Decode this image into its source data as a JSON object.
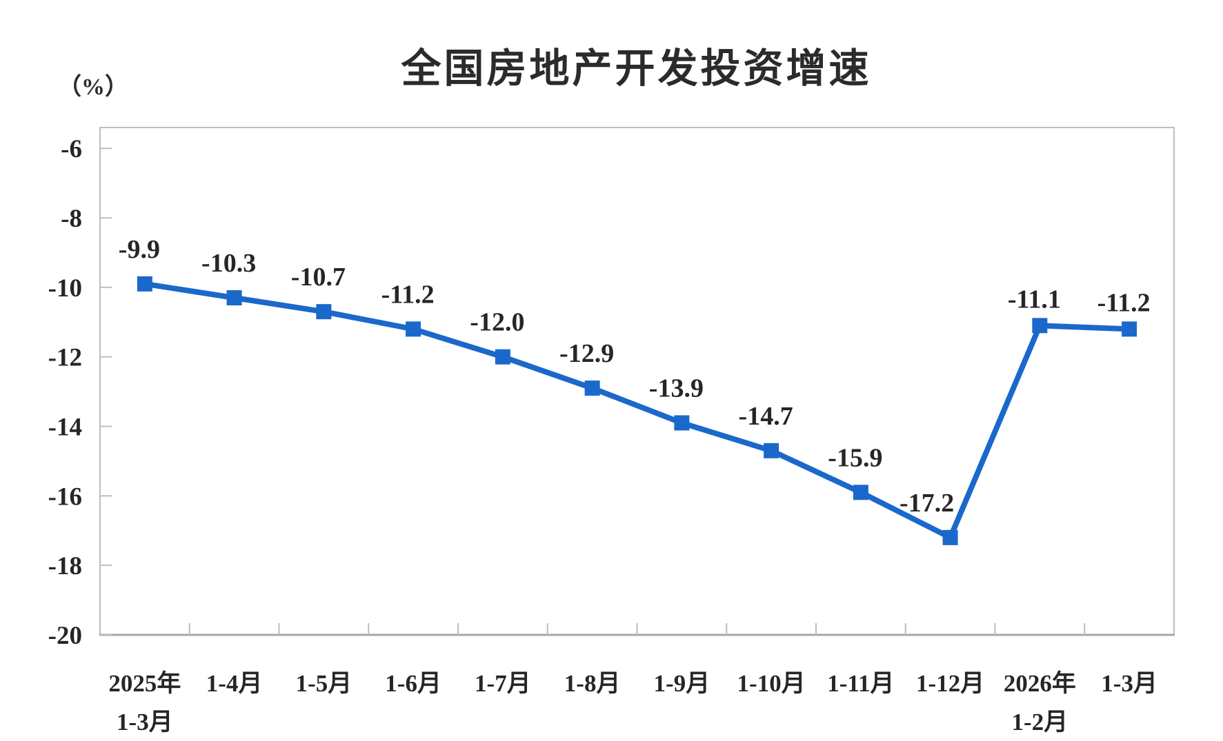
{
  "page": {
    "background_color": "#ffffff"
  },
  "chart_data": {
    "type": "line",
    "title": "全国房地产开发投资增速",
    "unit_label": "（%）",
    "series_name": "全国房地产开发投资增速",
    "categories": [
      "2025年\n1-3月",
      "1-4月",
      "1-5月",
      "1-6月",
      "1-7月",
      "1-8月",
      "1-9月",
      "1-10月",
      "1-11月",
      "1-12月",
      "2026年\n1-2月",
      "1-3月"
    ],
    "values": [
      -9.9,
      -10.3,
      -10.7,
      -11.2,
      -12.0,
      -12.9,
      -13.9,
      -14.7,
      -15.9,
      -17.2,
      -11.1,
      -11.2
    ],
    "data_labels": [
      "-9.9",
      "-10.3",
      "-10.7",
      "-11.2",
      "-12.0",
      "-12.9",
      "-13.9",
      "-14.7",
      "-15.9",
      "-17.2",
      "-11.1",
      "-11.2"
    ],
    "y_tick_values": [
      -6,
      -8,
      -10,
      -12,
      -14,
      -16,
      -18,
      -20
    ],
    "y_tick_labels": [
      "-6",
      "-8",
      "-10",
      "-12",
      "-14",
      "-16",
      "-18",
      "-20"
    ],
    "ylim": [
      -20,
      -5.4
    ],
    "grid": false,
    "legend_position": "none",
    "marker_shape": "square",
    "colors": {
      "line": "#1B68CB",
      "marker": "#1B68CB",
      "plot_border": "#BDBDBD",
      "axis_line": "#A6A6A6",
      "text": "#262626"
    }
  }
}
